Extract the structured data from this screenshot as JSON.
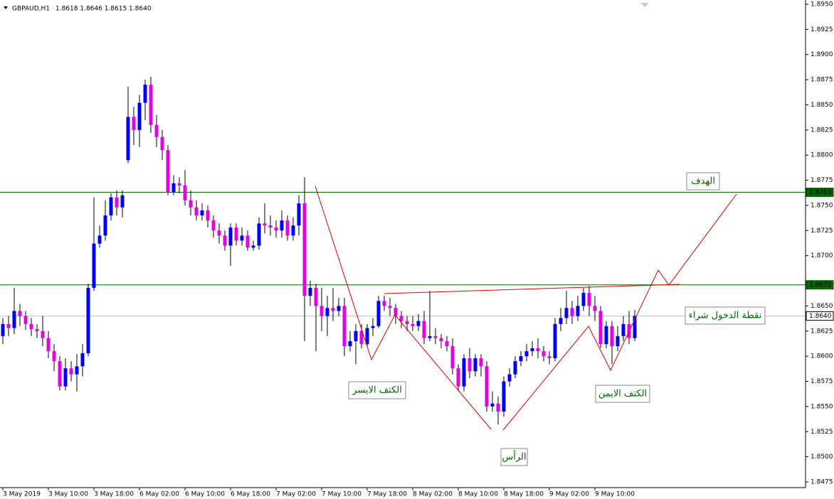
{
  "chart_data": {
    "type": "candlestick",
    "title": "GBPAUD,H1",
    "ohlc_text": "1.8618 1.8646 1.8615 1.8640",
    "up_color": "#0000ff",
    "down_color": "#e600e6",
    "wick_color": "#000000",
    "ylim": [
      1.8475,
      1.895
    ],
    "yticks": [
      {
        "value": 1.895,
        "label": "1.8950"
      },
      1.8925,
      {
        "value": 1.89,
        "label": "1.8900"
      },
      1.8875,
      {
        "value": 1.885,
        "label": "1.8850"
      },
      1.8825,
      {
        "value": 1.88,
        "label": "1.8800"
      },
      1.8775,
      {
        "value": 1.875,
        "label": "1.8750"
      },
      1.8725,
      {
        "value": 1.87,
        "label": "1.8700"
      },
      {
        "value": 1.865,
        "label": "1.8650"
      },
      1.8625,
      {
        "value": 1.86,
        "label": "1.8600"
      },
      1.8575,
      {
        "value": 1.855,
        "label": "1.8550"
      },
      1.8525,
      {
        "value": 1.85,
        "label": "1.8500"
      },
      1.8475
    ],
    "categories": [
      "3 May 2019",
      null,
      null,
      null,
      null,
      null,
      null,
      null,
      "3 May 10:00",
      null,
      null,
      null,
      null,
      null,
      null,
      null,
      "3 May 18:00",
      null,
      null,
      null,
      null,
      null,
      null,
      null,
      "6 May 02:00",
      null,
      null,
      null,
      null,
      null,
      null,
      null,
      "6 May 10:00",
      null,
      null,
      null,
      null,
      null,
      null,
      null,
      "6 May 18:00",
      null,
      null,
      null,
      null,
      null,
      null,
      null,
      "7 May 02:00",
      null,
      null,
      null,
      null,
      null,
      null,
      null,
      "7 May 10:00",
      null,
      null,
      null,
      null,
      null,
      null,
      null,
      "7 May 18:00",
      null,
      null,
      null,
      null,
      null,
      null,
      null,
      "8 May 02:00",
      null,
      null,
      null,
      null,
      null,
      null,
      null,
      "8 May 10:00",
      null,
      null,
      null,
      null,
      null,
      null,
      null,
      "8 May 18:00",
      null,
      null,
      null,
      null,
      null,
      null,
      null,
      "9 May 02:00",
      null,
      null,
      null,
      null,
      null,
      null,
      null,
      "9 May 10:00",
      null,
      null,
      null,
      null,
      null,
      null,
      null
    ],
    "open": [
      1.862,
      1.8632,
      1.8628,
      1.8645,
      1.864,
      1.8632,
      1.8627,
      1.8625,
      1.8618,
      1.8605,
      1.8595,
      1.857,
      1.8588,
      1.8582,
      1.859,
      1.8603,
      1.8668,
      1.8712,
      1.872,
      1.874,
      1.8758,
      1.8748,
      1.8795,
      1.8838,
      1.8825,
      1.8852,
      1.887,
      1.883,
      1.8818,
      1.8805,
      1.8763,
      1.8772,
      1.877,
      1.8755,
      1.8748,
      1.874,
      1.8745,
      1.8735,
      1.8725,
      1.872,
      1.871,
      1.8728,
      1.8715,
      1.872,
      1.8708,
      1.871,
      1.8732,
      1.873,
      1.8728,
      1.8725,
      1.8735,
      1.872,
      1.873,
      1.8752,
      1.866,
      1.8668,
      1.865,
      1.864,
      1.8648,
      1.8645,
      1.865,
      1.861,
      1.8615,
      1.8625,
      1.8612,
      1.8628,
      1.863,
      1.8655,
      1.865,
      1.8648,
      1.864,
      1.8635,
      1.8632,
      1.863,
      1.8635,
      1.8618,
      1.862,
      1.8618,
      1.8615,
      1.861,
      1.8588,
      1.857,
      1.8598,
      1.8585,
      1.8598,
      1.859,
      1.855,
      1.8553,
      1.8545,
      1.8575,
      1.8582,
      1.8595,
      1.86,
      1.8605,
      1.8608,
      1.8605,
      1.86,
      1.8598,
      1.8632,
      1.8638,
      1.8648,
      1.864,
      1.865,
      1.8663,
      1.865,
      1.8645,
      1.8612,
      1.863,
      1.861,
      1.862,
      1.8632,
      1.8618
    ],
    "high": [
      1.8638,
      1.864,
      1.8668,
      1.8652,
      1.8645,
      1.8638,
      1.8632,
      1.864,
      1.8625,
      1.8612,
      1.86,
      1.8598,
      1.8595,
      1.8602,
      1.8612,
      1.8672,
      1.8758,
      1.873,
      1.8755,
      1.8762,
      1.8765,
      1.8765,
      1.8868,
      1.8848,
      1.886,
      1.8875,
      1.8878,
      1.884,
      1.8825,
      1.881,
      1.878,
      1.8778,
      1.8785,
      1.8765,
      1.8755,
      1.8752,
      1.875,
      1.874,
      1.8732,
      1.8725,
      1.8732,
      1.8732,
      1.8728,
      1.8725,
      1.8715,
      1.8738,
      1.8752,
      1.874,
      1.8735,
      1.8745,
      1.874,
      1.8738,
      1.876,
      1.8778,
      1.8675,
      1.8672,
      1.8668,
      1.866,
      1.8668,
      1.8658,
      1.8658,
      1.8625,
      1.8632,
      1.8632,
      1.8632,
      1.8638,
      1.866,
      1.866,
      1.8658,
      1.8652,
      1.8645,
      1.864,
      1.864,
      1.8642,
      1.8645,
      1.8665,
      1.8628,
      1.8622,
      1.862,
      1.8618,
      1.8592,
      1.8602,
      1.8608,
      1.8602,
      1.8602,
      1.8595,
      1.8565,
      1.856,
      1.858,
      1.8588,
      1.86,
      1.8605,
      1.8612,
      1.8615,
      1.8618,
      1.861,
      1.8605,
      1.8638,
      1.8648,
      1.8665,
      1.8655,
      1.866,
      1.8668,
      1.867,
      1.866,
      1.865,
      1.8635,
      1.8635,
      1.863,
      1.864,
      1.8645,
      1.8646
    ],
    "low": [
      1.8612,
      1.862,
      1.8622,
      1.863,
      1.8626,
      1.862,
      1.8618,
      1.861,
      1.8598,
      1.8585,
      1.8566,
      1.8566,
      1.8575,
      1.8565,
      1.858,
      1.86,
      1.8665,
      1.8708,
      1.8715,
      1.8735,
      1.874,
      1.8738,
      1.8792,
      1.881,
      1.8808,
      1.8835,
      1.8822,
      1.8808,
      1.8795,
      1.876,
      1.876,
      1.8762,
      1.875,
      1.874,
      1.8735,
      1.8735,
      1.8728,
      1.8718,
      1.8712,
      1.8705,
      1.869,
      1.871,
      1.871,
      1.8705,
      1.8705,
      1.8706,
      1.8722,
      1.872,
      1.8718,
      1.8718,
      1.8715,
      1.8715,
      1.872,
      1.8615,
      1.865,
      1.8605,
      1.8625,
      1.862,
      1.8635,
      1.864,
      1.86,
      1.8605,
      1.8592,
      1.8608,
      1.861,
      1.862,
      1.8628,
      1.8645,
      1.864,
      1.8632,
      1.8628,
      1.8625,
      1.8625,
      1.8625,
      1.8612,
      1.8615,
      1.8612,
      1.8608,
      1.8605,
      1.8582,
      1.8565,
      1.8565,
      1.8578,
      1.858,
      1.858,
      1.8545,
      1.8545,
      1.8532,
      1.854,
      1.857,
      1.8578,
      1.859,
      1.8595,
      1.86,
      1.8598,
      1.8595,
      1.8592,
      1.8595,
      1.8625,
      1.8632,
      1.8632,
      1.8635,
      1.8645,
      1.864,
      1.8635,
      1.8608,
      1.8608,
      1.8592,
      1.8605,
      1.8615,
      1.8612,
      1.8615
    ],
    "close": [
      1.8632,
      1.8628,
      1.8645,
      1.864,
      1.8632,
      1.8627,
      1.8625,
      1.8618,
      1.8605,
      1.8595,
      1.857,
      1.8588,
      1.8582,
      1.859,
      1.8603,
      1.8668,
      1.8712,
      1.872,
      1.874,
      1.8758,
      1.8748,
      1.876,
      1.8838,
      1.8825,
      1.8852,
      1.887,
      1.883,
      1.8818,
      1.8805,
      1.8763,
      1.8772,
      1.877,
      1.8755,
      1.8748,
      1.874,
      1.8745,
      1.8735,
      1.8725,
      1.872,
      1.871,
      1.8728,
      1.8715,
      1.872,
      1.8708,
      1.871,
      1.8732,
      1.873,
      1.8728,
      1.8725,
      1.8735,
      1.872,
      1.873,
      1.8752,
      1.866,
      1.8668,
      1.865,
      1.864,
      1.8648,
      1.8645,
      1.865,
      1.861,
      1.8615,
      1.8625,
      1.8612,
      1.8628,
      1.863,
      1.8655,
      1.865,
      1.8648,
      1.864,
      1.8635,
      1.8632,
      1.863,
      1.8635,
      1.8618,
      1.862,
      1.8618,
      1.8615,
      1.861,
      1.8588,
      1.857,
      1.8598,
      1.8585,
      1.8598,
      1.859,
      1.855,
      1.8553,
      1.8545,
      1.8575,
      1.8582,
      1.8595,
      1.86,
      1.8605,
      1.8608,
      1.8605,
      1.86,
      1.8598,
      1.8632,
      1.8638,
      1.8648,
      1.864,
      1.865,
      1.8663,
      1.865,
      1.8645,
      1.8612,
      1.863,
      1.861,
      1.862,
      1.8632,
      1.8618,
      1.864
    ],
    "levels": [
      {
        "price": 1.8763,
        "color": "#006400"
      },
      {
        "price": 1.8671,
        "color": "#006400"
      },
      {
        "price": {
          "value": 1.864,
          "label": "1.8640"
        },
        "color": "#c0c0c0"
      }
    ],
    "annotations": [
      {
        "text": "الهدف"
      },
      {
        "text": "نقطة الدخول شراء"
      },
      {
        "text": "الكتف الايسر"
      },
      {
        "text": "الرأس"
      },
      {
        "text": "الكتف الايمن"
      }
    ]
  }
}
